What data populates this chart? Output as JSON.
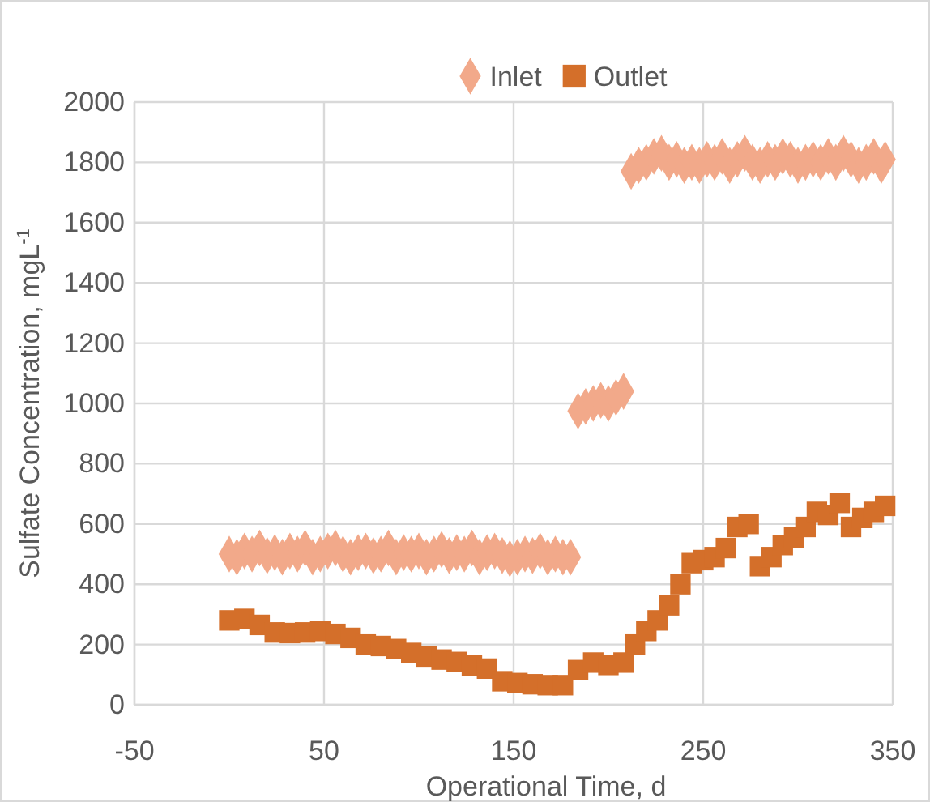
{
  "chart_data": {
    "type": "scatter",
    "xlabel": "Operational Time, d",
    "ylabel": "Sulfate Concentration, mgL$^{-1}$",
    "xlim": [
      -50,
      350
    ],
    "xticks": [
      -50,
      50,
      150,
      250,
      350
    ],
    "ylim": [
      0,
      2000
    ],
    "yticks": [
      0,
      200,
      400,
      600,
      800,
      1000,
      1200,
      1400,
      1600,
      1800,
      2000
    ],
    "grid": true,
    "legend": "top",
    "series": [
      {
        "name": "Inlet",
        "color": "#f2a98a",
        "marker": "diamond",
        "x": [
          0,
          4,
          8,
          12,
          16,
          20,
          24,
          28,
          32,
          36,
          40,
          44,
          48,
          52,
          56,
          60,
          64,
          68,
          72,
          76,
          80,
          84,
          88,
          92,
          96,
          100,
          104,
          108,
          112,
          116,
          120,
          124,
          128,
          132,
          136,
          140,
          144,
          148,
          152,
          156,
          160,
          164,
          168,
          172,
          176,
          180,
          184,
          188,
          192,
          196,
          200,
          204,
          208,
          212,
          216,
          220,
          224,
          228,
          232,
          236,
          240,
          244,
          248,
          252,
          256,
          260,
          264,
          268,
          272,
          276,
          280,
          284,
          288,
          292,
          296,
          300,
          304,
          308,
          312,
          316,
          320,
          324,
          328,
          332,
          336,
          340,
          344,
          346
        ],
        "values": [
          500,
          490,
          510,
          500,
          520,
          495,
          505,
          490,
          510,
          500,
          520,
          490,
          500,
          510,
          520,
          500,
          490,
          505,
          510,
          495,
          500,
          520,
          490,
          505,
          500,
          510,
          490,
          500,
          515,
          495,
          505,
          500,
          520,
          490,
          505,
          510,
          495,
          485,
          490,
          500,
          495,
          510,
          490,
          500,
          490,
          490,
          975,
          990,
          1000,
          1010,
          1000,
          1020,
          1040,
          1770,
          1790,
          1800,
          1820,
          1830,
          1800,
          1810,
          1790,
          1800,
          1790,
          1810,
          1800,
          1820,
          1790,
          1810,
          1830,
          1800,
          1790,
          1810,
          1800,
          1820,
          1810,
          1790,
          1800,
          1810,
          1800,
          1820,
          1800,
          1830,
          1810,
          1790,
          1800,
          1820,
          1790,
          1810
        ]
      },
      {
        "name": "Outlet",
        "color": "#d46f2a",
        "marker": "square",
        "x": [
          0,
          8,
          16,
          24,
          32,
          40,
          48,
          56,
          64,
          72,
          80,
          88,
          96,
          104,
          112,
          120,
          128,
          136,
          144,
          152,
          160,
          168,
          176,
          184,
          192,
          200,
          208,
          214,
          220,
          226,
          232,
          238,
          244,
          250,
          256,
          262,
          268,
          274,
          280,
          286,
          292,
          298,
          304,
          310,
          316,
          322,
          328,
          334,
          340,
          346
        ],
        "values": [
          280,
          285,
          265,
          240,
          238,
          240,
          245,
          235,
          222,
          200,
          195,
          185,
          172,
          160,
          150,
          142,
          130,
          120,
          78,
          72,
          68,
          65,
          65,
          115,
          140,
          132,
          140,
          200,
          245,
          280,
          330,
          400,
          470,
          480,
          490,
          520,
          590,
          600,
          460,
          490,
          530,
          555,
          590,
          640,
          630,
          670,
          590,
          620,
          640,
          660
        ]
      }
    ]
  }
}
